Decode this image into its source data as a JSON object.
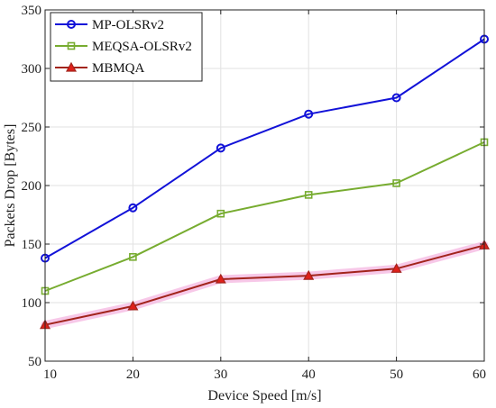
{
  "chart_data": {
    "type": "line",
    "x": [
      10,
      20,
      30,
      40,
      50,
      60
    ],
    "xlabel": "Device Speed [m/s]",
    "ylabel": "Packets Drop [Bytes]",
    "xlim": [
      10,
      60
    ],
    "ylim": [
      50,
      350
    ],
    "xticks": [
      10,
      20,
      30,
      40,
      50,
      60
    ],
    "yticks": [
      50,
      100,
      150,
      200,
      250,
      300,
      350
    ],
    "grid": true,
    "legend_position": "top-left",
    "series": [
      {
        "name": "MP-OLSRv2",
        "values": [
          138,
          181,
          232,
          261,
          275,
          325
        ],
        "color": "#1212d8",
        "marker": "circle"
      },
      {
        "name": "MEQSA-OLSRv2",
        "values": [
          110,
          139,
          176,
          192,
          202,
          237
        ],
        "color": "#77ac30",
        "marker": "square"
      },
      {
        "name": "MBMQA",
        "values": [
          81,
          97,
          120,
          123,
          129,
          149
        ],
        "color": "#a2241c",
        "marker": "triangle",
        "marker_color": "#e0201a",
        "band_color": "#f4b6e0"
      }
    ]
  }
}
